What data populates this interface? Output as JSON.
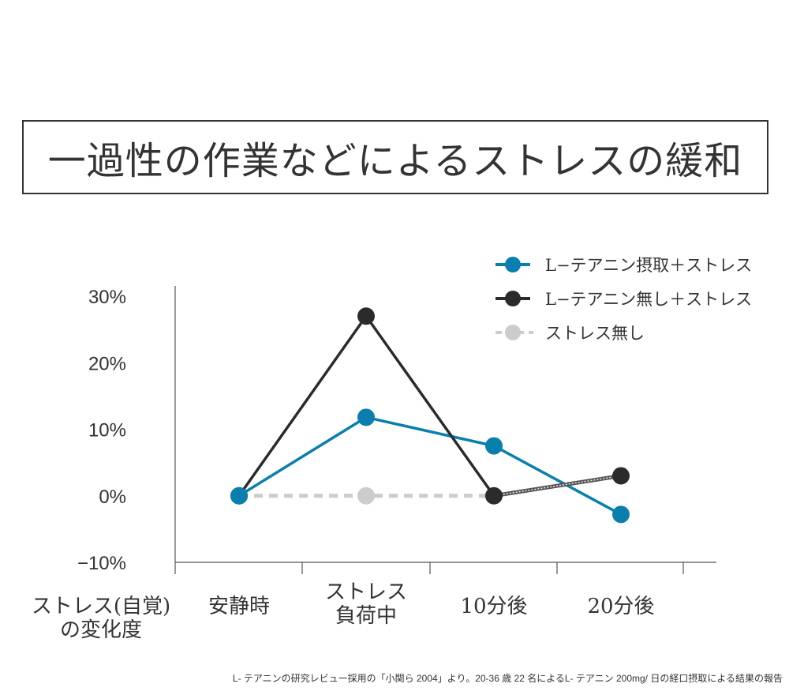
{
  "title": "一過性の作業などによるストレスの緩和",
  "footnote": "L- テアニンの研究レビュー採用の「小関ら 2004」より。20-36 歳 22 名によるL- テアニン 200mg/ 日の経口摂取による結果の報告",
  "chart_data": {
    "type": "line",
    "ylabel_lines": [
      "ストレス(自覚)",
      "の変化度"
    ],
    "categories": [
      [
        "安静時"
      ],
      [
        "ストレス",
        "負荷中"
      ],
      [
        "10分後"
      ],
      [
        "20分後"
      ]
    ],
    "ylim": [
      -10,
      30
    ],
    "yticks": [
      {
        "value": 30,
        "label": "30%"
      },
      {
        "value": 20,
        "label": "20%"
      },
      {
        "value": 10,
        "label": "10%"
      },
      {
        "value": 0,
        "label": "0%"
      },
      {
        "value": -10,
        "label": "−10%"
      }
    ],
    "series": [
      {
        "name": "ストレス無し",
        "color": "#cccccc",
        "style": "dashed",
        "values": [
          0,
          0,
          0,
          null
        ]
      },
      {
        "name": "L−テアニン摂取＋ストレス",
        "color": "#0a7fae",
        "style": "solid",
        "values": [
          0,
          11.8,
          7.5,
          -2.8
        ]
      },
      {
        "name": "L−テアニン無し＋ストレス",
        "color": "#2b2b2b",
        "style": "solid",
        "values": [
          0,
          27,
          0,
          3
        ]
      }
    ],
    "legend_order": [
      1,
      2,
      0
    ],
    "legend_position": "top-right"
  }
}
